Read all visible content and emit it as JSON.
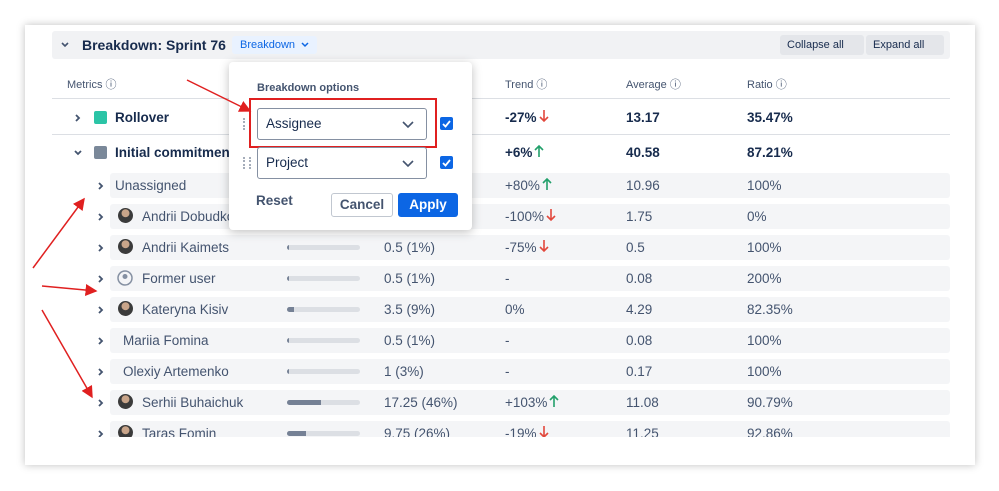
{
  "header": {
    "title": "Breakdown: Sprint 76",
    "breakdown_button": "Breakdown",
    "collapse_all": "Collapse all",
    "expand_all": "Expand all"
  },
  "columns": {
    "metrics": "Metrics",
    "trend": "Trend",
    "average": "Average",
    "ratio": "Ratio"
  },
  "rows": [
    {
      "name": "Rollover",
      "level": "top",
      "color": "#2bc4a6",
      "expanded": false,
      "trend": "-27%",
      "trend_direction": "down",
      "average": "13.17",
      "ratio": "35.47%"
    },
    {
      "name": "Initial commitment",
      "level": "top",
      "color": "#7a8899",
      "expanded": true,
      "trend": "+6%",
      "trend_direction": "up",
      "average": "40.58",
      "ratio": "87.21%"
    },
    {
      "name": "Unassigned",
      "level": "sub",
      "avatar": "none",
      "trend": "+80%",
      "trend_direction": "up",
      "average": "10.96",
      "ratio": "100%"
    },
    {
      "name": "Andrii Dobudko",
      "level": "sub",
      "avatar": "photo",
      "trend": "-100%",
      "trend_direction": "down",
      "average": "1.75",
      "ratio": "0%"
    },
    {
      "name": "Andrii Kaimets",
      "level": "sub",
      "avatar": "photo",
      "value": "0.5 (1%)",
      "trend": "-75%",
      "trend_direction": "down",
      "average": "0.5",
      "ratio": "100%"
    },
    {
      "name": "Former user",
      "level": "sub",
      "avatar": "generic",
      "value": "0.5 (1%)",
      "trend": "-",
      "average": "0.08",
      "ratio": "200%"
    },
    {
      "name": "Kateryna Kisiv",
      "level": "sub",
      "avatar": "photo",
      "value": "3.5 (9%)",
      "trend": "0%",
      "average": "4.29",
      "ratio": "82.35%"
    },
    {
      "name": "Mariia Fomina",
      "level": "sub",
      "avatar": "none",
      "value": "0.5 (1%)",
      "trend": "-",
      "average": "0.08",
      "ratio": "100%"
    },
    {
      "name": "Olexiy Artemenko",
      "level": "sub",
      "avatar": "none",
      "value": "1 (3%)",
      "trend": "-",
      "average": "0.17",
      "ratio": "100%"
    },
    {
      "name": "Serhii Buhaichuk",
      "level": "sub",
      "avatar": "photo",
      "value": "17.25 (46%)",
      "trend": "+103%",
      "trend_direction": "up",
      "average": "11.08",
      "ratio": "90.79%"
    },
    {
      "name": "Taras Fomin",
      "level": "sub",
      "avatar": "photo",
      "value": "9.75 (26%)",
      "trend": "-19%",
      "trend_direction": "down",
      "average": "11.25",
      "ratio": "92.86%"
    }
  ],
  "popup": {
    "title": "Breakdown options",
    "options": [
      {
        "label": "Assignee",
        "checked": true,
        "highlighted": true
      },
      {
        "label": "Project",
        "checked": true,
        "highlighted": false
      }
    ],
    "reset": "Reset",
    "cancel": "Cancel",
    "apply": "Apply"
  }
}
